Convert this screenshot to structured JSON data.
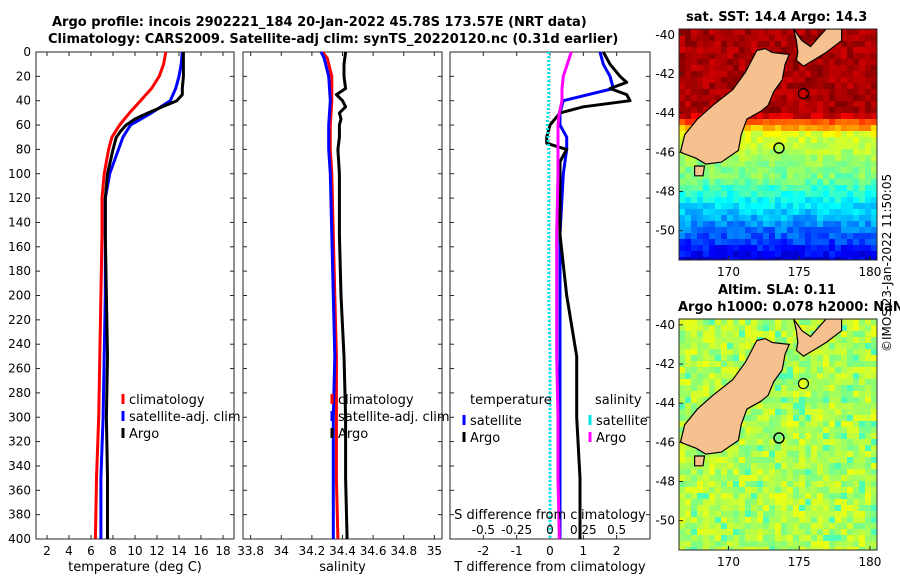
{
  "title": {
    "line1": "Argo profile: incois 2902221_184 20-Jan-2022 45.78S 173.57E (NRT data)",
    "line2": "Climatology: CARS2009. Satellite-adj clim: synTS_20220120.nc (0.31d earlier)"
  },
  "timestamp": "©IMOS 23-Jan-2022 11:50:05",
  "colors": {
    "climatology": "#ff0000",
    "satellite": "#0000ff",
    "argo": "#000000",
    "sal_satellite": "#00e5e5",
    "sal_argo": "#ff00ff"
  },
  "chart_data": [
    {
      "type": "line",
      "name": "temperature",
      "xlabel": "temperature (deg C)",
      "xlim": [
        1,
        19
      ],
      "xticks": [
        2,
        4,
        6,
        8,
        10,
        12,
        14,
        16,
        18
      ],
      "xtick_labels": [
        "2",
        "4",
        "6",
        "8",
        "10",
        "12",
        "14",
        "16",
        "18"
      ],
      "ylim": [
        0,
        400
      ],
      "yticks": [
        0,
        20,
        40,
        60,
        80,
        100,
        120,
        140,
        160,
        180,
        200,
        220,
        240,
        260,
        280,
        300,
        320,
        340,
        360,
        380,
        400
      ],
      "ytick_labels": [
        "0",
        "20",
        "40",
        "60",
        "80",
        "100",
        "120",
        "140",
        "160",
        "180",
        "200",
        "220",
        "240",
        "260",
        "280",
        "300",
        "320",
        "340",
        "360",
        "380",
        "400"
      ],
      "legend": [
        "climatology",
        "satellite-adj. clim",
        "Argo"
      ],
      "series": [
        {
          "name": "climatology",
          "depth": [
            0,
            10,
            20,
            30,
            40,
            50,
            60,
            70,
            80,
            100,
            120,
            150,
            200,
            250,
            300,
            350,
            400
          ],
          "values": [
            12.8,
            12.6,
            12.2,
            11.5,
            10.5,
            9.5,
            8.6,
            7.9,
            7.6,
            7.2,
            7.0,
            7.0,
            6.9,
            6.8,
            6.7,
            6.5,
            6.4
          ]
        },
        {
          "name": "satellite-adj. clim",
          "depth": [
            0,
            10,
            20,
            30,
            40,
            50,
            60,
            70,
            80,
            100,
            120,
            150,
            200,
            250,
            300,
            350,
            400
          ],
          "values": [
            14.3,
            14.2,
            14.0,
            13.7,
            13.2,
            11.5,
            9.6,
            8.9,
            8.5,
            7.7,
            7.3,
            7.3,
            7.3,
            7.2,
            7.1,
            6.9,
            6.9
          ]
        },
        {
          "name": "Argo",
          "depth": [
            0,
            10,
            20,
            30,
            35,
            40,
            45,
            50,
            55,
            60,
            65,
            70,
            80,
            100,
            120,
            150,
            200,
            250,
            300,
            350,
            400
          ],
          "values": [
            14.4,
            14.4,
            14.4,
            14.3,
            14.3,
            13.8,
            12.5,
            11.2,
            10.0,
            9.2,
            8.7,
            8.3,
            8.0,
            7.5,
            7.3,
            7.3,
            7.4,
            7.5,
            7.4,
            7.5,
            7.5
          ]
        }
      ]
    },
    {
      "type": "line",
      "name": "salinity",
      "xlabel": "salinity",
      "xlim": [
        33.75,
        35.05
      ],
      "xticks": [
        33.8,
        34,
        34.2,
        34.4,
        34.6,
        34.8,
        35
      ],
      "xtick_labels": [
        "33.8",
        "34",
        "34.2",
        "34.4",
        "34.6",
        "34.8",
        "35"
      ],
      "ylim": [
        0,
        400
      ],
      "legend": [
        "climatology",
        "satellite-adj. clim",
        "Argo"
      ],
      "series": [
        {
          "name": "climatology",
          "depth": [
            0,
            5,
            20,
            40,
            60,
            80,
            100,
            150,
            200,
            250,
            300,
            350,
            400
          ],
          "values": [
            34.27,
            34.3,
            34.33,
            34.33,
            34.32,
            34.32,
            34.33,
            34.34,
            34.35,
            34.36,
            34.36,
            34.36,
            34.37
          ]
        },
        {
          "name": "satellite-adj. clim",
          "depth": [
            0,
            5,
            20,
            40,
            60,
            80,
            100,
            150,
            200,
            250,
            300,
            350,
            400
          ],
          "values": [
            34.26,
            34.28,
            34.31,
            34.32,
            34.31,
            34.31,
            34.32,
            34.33,
            34.34,
            34.35,
            34.34,
            34.34,
            34.34
          ]
        },
        {
          "name": "Argo",
          "depth": [
            0,
            10,
            20,
            30,
            35,
            40,
            45,
            50,
            55,
            60,
            70,
            80,
            100,
            150,
            200,
            250,
            300,
            350,
            400
          ],
          "values": [
            34.42,
            34.41,
            34.41,
            34.42,
            34.36,
            34.4,
            34.42,
            34.38,
            34.39,
            34.38,
            34.38,
            34.37,
            34.38,
            34.38,
            34.39,
            34.41,
            34.42,
            34.42,
            34.43
          ]
        }
      ]
    },
    {
      "type": "line",
      "name": "difference",
      "xlabel": "T difference from climatology",
      "xlabel_top": "S difference from climatology",
      "xlim": [
        -3,
        3
      ],
      "xticks": [
        -2,
        -1,
        0,
        1,
        2
      ],
      "xtick_labels": [
        "-2",
        "-1",
        "0",
        "1",
        "2"
      ],
      "s_ticks": [
        -0.5,
        -0.25,
        0,
        0.25,
        0.5
      ],
      "s_tick_labels": [
        "-0.5",
        "-0.25",
        "0",
        "0.25",
        "0.5"
      ],
      "ylim": [
        0,
        400
      ],
      "legend_temperature": {
        "title": "temperature",
        "items": [
          "satellite",
          "Argo"
        ]
      },
      "legend_salinity": {
        "title": "salinity",
        "items": [
          "satellite",
          "Argo"
        ]
      },
      "series": [
        {
          "name": "temperature satellite",
          "depth": [
            0,
            10,
            20,
            30,
            40,
            50,
            60,
            70,
            80,
            100,
            150,
            200,
            250,
            300,
            350,
            400
          ],
          "values": [
            1.5,
            1.6,
            1.8,
            1.9,
            0.4,
            0.3,
            0.3,
            0.5,
            0.5,
            0.4,
            0.3,
            0.3,
            0.3,
            0.3,
            0.3,
            0.3
          ]
        },
        {
          "name": "temperature Argo",
          "depth": [
            0,
            10,
            20,
            25,
            30,
            35,
            40,
            45,
            50,
            60,
            70,
            75,
            80,
            90,
            100,
            150,
            200,
            250,
            300,
            350,
            400
          ],
          "values": [
            1.6,
            1.8,
            2.1,
            2.3,
            1.8,
            2.3,
            2.4,
            1.0,
            0.3,
            0.0,
            -0.1,
            -0.1,
            0.5,
            0.3,
            0.3,
            0.3,
            0.5,
            0.8,
            0.8,
            0.9,
            0.9
          ]
        },
        {
          "name": "salinity satellite",
          "depth": [
            0,
            20,
            40,
            60,
            80,
            100,
            150,
            200,
            250,
            300,
            350,
            400
          ],
          "values": [
            -0.01,
            -0.01,
            -0.01,
            -0.02,
            -0.01,
            -0.01,
            -0.01,
            -0.01,
            0.0,
            0.0,
            0.0,
            0.0
          ]
        },
        {
          "name": "salinity Argo",
          "depth": [
            0,
            10,
            20,
            30,
            40,
            50,
            60,
            80,
            100,
            150,
            200,
            250,
            300,
            350,
            400
          ],
          "values": [
            0.16,
            0.13,
            0.1,
            0.09,
            0.09,
            0.07,
            0.06,
            0.06,
            0.06,
            0.05,
            0.05,
            0.05,
            0.06,
            0.06,
            0.07
          ]
        }
      ]
    },
    {
      "type": "heatmap",
      "name": "sst-map",
      "title": "sat. SST: 14.4 Argo: 14.3",
      "xlim": [
        166.5,
        180.5
      ],
      "ylim": [
        -51.5,
        -39.7
      ],
      "xticks": [
        170,
        175,
        180
      ],
      "xtick_labels": [
        "170",
        "175",
        "180"
      ],
      "yticks": [
        -40,
        -42,
        -44,
        -46,
        -48,
        -50
      ],
      "ytick_labels": [
        "-40",
        "-42",
        "-44",
        "-46",
        "-48",
        "-50"
      ],
      "argo_position": [
        173.57,
        -45.78
      ]
    },
    {
      "type": "heatmap",
      "name": "sla-map",
      "title_line1": "Altim. SLA: 0.11",
      "title_line2": "Argo h1000: 0.078 h2000: NaN",
      "xlim": [
        166.5,
        180.5
      ],
      "ylim": [
        -51.5,
        -39.7
      ],
      "xticks": [
        170,
        175,
        180
      ],
      "xtick_labels": [
        "170",
        "175",
        "180"
      ],
      "yticks": [
        -40,
        -42,
        -44,
        -46,
        -48,
        -50
      ],
      "ytick_labels": [
        "-40",
        "-42",
        "-44",
        "-46",
        "-48",
        "-50"
      ],
      "argo_position": [
        173.57,
        -45.78
      ]
    }
  ]
}
